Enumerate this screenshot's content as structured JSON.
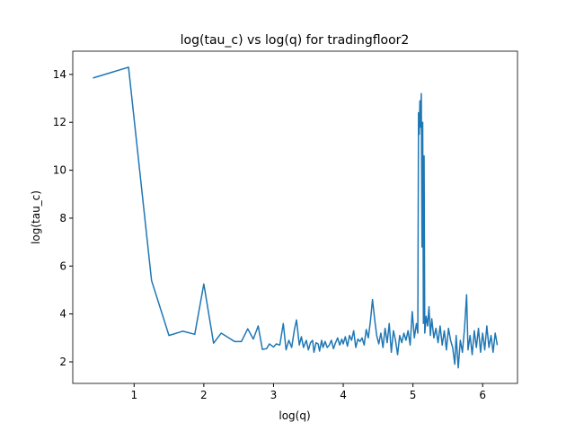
{
  "chart_data": {
    "type": "line",
    "title": "log(tau_c) vs log(q) for tradingfloor2",
    "x_label": "log(q)",
    "y_label": "log(tau_c)",
    "xlim": [
      0.12,
      6.5
    ],
    "ylim": [
      1.1,
      14.97
    ],
    "xticks": [
      1,
      2,
      3,
      4,
      5,
      6
    ],
    "yticks": [
      2,
      4,
      6,
      8,
      10,
      12,
      14
    ],
    "series": [
      {
        "color": "#1f77b4",
        "x": [
          0.41,
          0.92,
          1.25,
          1.5,
          1.7,
          1.87,
          2.0,
          2.14,
          2.25,
          2.44,
          2.54,
          2.63,
          2.71,
          2.78,
          2.84,
          2.9,
          2.94,
          3.0,
          3.04,
          3.09,
          3.14,
          3.18,
          3.22,
          3.26,
          3.3,
          3.33,
          3.37,
          3.4,
          3.43,
          3.47,
          3.5,
          3.53,
          3.56,
          3.58,
          3.61,
          3.64,
          3.66,
          3.69,
          3.71,
          3.74,
          3.77,
          3.8,
          3.83,
          3.86,
          3.89,
          3.92,
          3.95,
          3.98,
          4.0,
          4.03,
          4.06,
          4.09,
          4.12,
          4.15,
          4.18,
          4.21,
          4.24,
          4.27,
          4.3,
          4.33,
          4.36,
          4.39,
          4.42,
          4.45,
          4.48,
          4.51,
          4.54,
          4.57,
          4.6,
          4.63,
          4.66,
          4.69,
          4.72,
          4.75,
          4.78,
          4.81,
          4.84,
          4.87,
          4.9,
          4.93,
          4.96,
          4.99,
          5.02,
          5.05,
          5.07,
          5.08,
          5.09,
          5.1,
          5.11,
          5.12,
          5.13,
          5.14,
          5.15,
          5.16,
          5.17,
          5.19,
          5.21,
          5.23,
          5.25,
          5.27,
          5.3,
          5.33,
          5.36,
          5.39,
          5.42,
          5.45,
          5.48,
          5.51,
          5.54,
          5.57,
          5.6,
          5.62,
          5.65,
          5.68,
          5.71,
          5.74,
          5.77,
          5.79,
          5.82,
          5.85,
          5.88,
          5.91,
          5.94,
          5.97,
          6.0,
          6.03,
          6.06,
          6.09,
          6.12,
          6.15,
          6.18,
          6.21
        ],
        "values": [
          13.85,
          14.3,
          5.4,
          3.1,
          3.28,
          3.15,
          5.25,
          2.78,
          3.2,
          2.85,
          2.85,
          3.38,
          2.95,
          3.5,
          2.52,
          2.55,
          2.75,
          2.62,
          2.75,
          2.7,
          3.6,
          2.5,
          2.9,
          2.6,
          3.35,
          3.75,
          2.7,
          3.05,
          2.6,
          2.9,
          2.5,
          2.8,
          2.9,
          2.4,
          2.8,
          2.75,
          2.45,
          2.9,
          2.6,
          2.85,
          2.6,
          2.7,
          2.9,
          2.55,
          2.8,
          3.0,
          2.7,
          2.95,
          2.75,
          3.05,
          2.65,
          3.1,
          2.9,
          3.3,
          2.6,
          2.95,
          2.85,
          3.0,
          2.7,
          3.35,
          3.0,
          3.7,
          4.6,
          3.8,
          3.1,
          2.75,
          3.2,
          2.6,
          3.4,
          2.8,
          3.6,
          2.4,
          3.3,
          2.9,
          2.3,
          3.1,
          2.8,
          3.2,
          2.9,
          3.3,
          2.7,
          4.1,
          3.0,
          3.6,
          3.2,
          12.4,
          11.5,
          12.9,
          11.8,
          13.2,
          6.8,
          12.0,
          3.6,
          10.6,
          3.2,
          3.9,
          3.5,
          4.3,
          3.1,
          3.8,
          3.0,
          3.4,
          2.8,
          3.5,
          2.7,
          3.3,
          2.5,
          3.4,
          2.9,
          2.6,
          1.9,
          3.1,
          1.75,
          2.9,
          2.4,
          3.4,
          4.8,
          2.5,
          3.1,
          2.3,
          3.3,
          2.6,
          3.4,
          2.4,
          3.2,
          2.5,
          3.5,
          2.6,
          3.1,
          2.4,
          3.2,
          2.7
        ]
      }
    ]
  }
}
